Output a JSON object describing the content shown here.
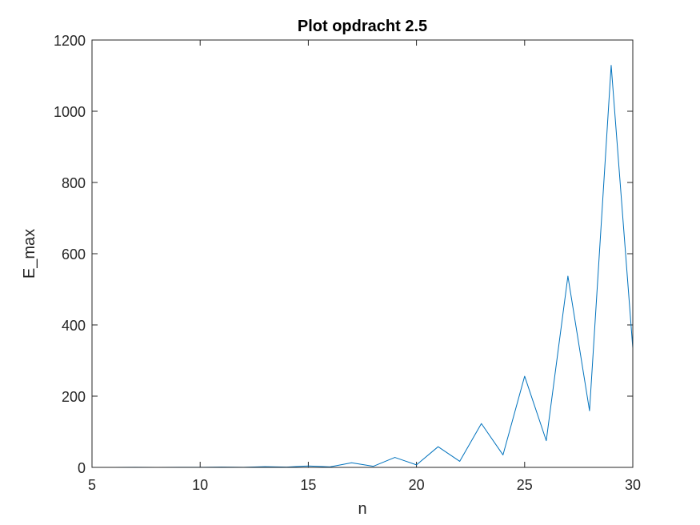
{
  "chart_data": {
    "type": "line",
    "title": "Plot opdracht 2.5",
    "xlabel": "n",
    "ylabel": "E_max",
    "xlim": [
      5,
      30
    ],
    "ylim": [
      0,
      1200
    ],
    "xticks": [
      5,
      10,
      15,
      20,
      25,
      30
    ],
    "yticks": [
      0,
      200,
      400,
      600,
      800,
      1000,
      1200
    ],
    "xtick_labels": [
      "5",
      "10",
      "15",
      "20",
      "25",
      "30"
    ],
    "ytick_labels": [
      "0",
      "200",
      "400",
      "600",
      "800",
      "1000",
      "1200"
    ],
    "grid": false,
    "box": true,
    "series": [
      {
        "color": "#0072BD",
        "x": [
          5,
          6,
          7,
          8,
          9,
          10,
          11,
          12,
          13,
          14,
          15,
          16,
          17,
          18,
          19,
          20,
          21,
          22,
          23,
          24,
          25,
          26,
          27,
          28,
          29,
          30
        ],
        "y": [
          0.1,
          0.05,
          0.2,
          0.1,
          0.3,
          0.2,
          0.8,
          0.4,
          2,
          0.8,
          4,
          1.5,
          13,
          3,
          28,
          7,
          58,
          17,
          123,
          35,
          256,
          75,
          537,
          159,
          1129,
          335
        ]
      }
    ]
  }
}
